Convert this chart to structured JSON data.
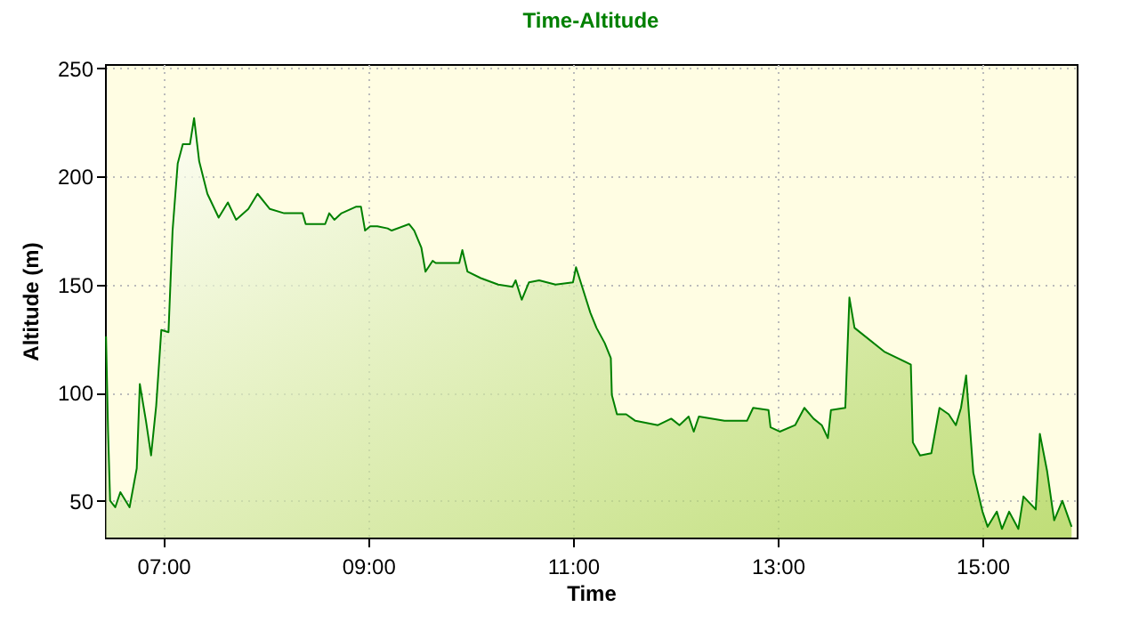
{
  "chart_data": {
    "type": "area",
    "title": "Time-Altitude",
    "xlabel": "Time",
    "ylabel": "Altitude (m)",
    "x": [
      6.44,
      6.46,
      6.48,
      6.53,
      6.58,
      6.67,
      6.74,
      6.77,
      6.83,
      6.88,
      6.93,
      6.98,
      7.05,
      7.09,
      7.14,
      7.19,
      7.26,
      7.3,
      7.35,
      7.43,
      7.54,
      7.63,
      7.71,
      7.83,
      7.92,
      8.04,
      8.18,
      8.36,
      8.39,
      8.58,
      8.62,
      8.67,
      8.74,
      8.88,
      8.93,
      8.97,
      9.02,
      9.09,
      9.19,
      9.23,
      9.4,
      9.45,
      9.52,
      9.56,
      9.63,
      9.66,
      9.89,
      9.92,
      9.97,
      10.1,
      10.27,
      10.41,
      10.44,
      10.5,
      10.57,
      10.67,
      10.83,
      11.0,
      11.03,
      11.09,
      11.17,
      11.23,
      11.31,
      11.37,
      11.38,
      11.43,
      11.52,
      11.61,
      11.83,
      11.96,
      12.04,
      12.13,
      12.18,
      12.23,
      12.48,
      12.7,
      12.76,
      12.91,
      12.93,
      13.02,
      13.17,
      13.26,
      13.35,
      13.43,
      13.49,
      13.52,
      13.66,
      13.7,
      13.75,
      14.04,
      14.3,
      14.32,
      14.39,
      14.5,
      14.58,
      14.67,
      14.74,
      14.79,
      14.84,
      14.91,
      15.0,
      15.05,
      15.14,
      15.19,
      15.26,
      15.35,
      15.4,
      15.52,
      15.56,
      15.63,
      15.7,
      15.78,
      15.87
    ],
    "series": [
      {
        "color": "#008000",
        "values": [
          126,
          82,
          50,
          47,
          54,
          47,
          65,
          104,
          87,
          71,
          94,
          129,
          128,
          175,
          206,
          215,
          215,
          227,
          207,
          192,
          181,
          188,
          180,
          185,
          192,
          185,
          183,
          183,
          178,
          178,
          183,
          180,
          183,
          186,
          186,
          175,
          177,
          177,
          176,
          175,
          178,
          175,
          167,
          156,
          161,
          160,
          160,
          166,
          156,
          153,
          150,
          149,
          152,
          143,
          151,
          152,
          150,
          151,
          158,
          149,
          137,
          130,
          123,
          116,
          99,
          90,
          90,
          87,
          85,
          88,
          85,
          89,
          82,
          89,
          87,
          87,
          93,
          92,
          84,
          82,
          85,
          93,
          88,
          85,
          79,
          92,
          93,
          144,
          130,
          119,
          113,
          77,
          71,
          72,
          93,
          90,
          85,
          93,
          108,
          63,
          45,
          38,
          45,
          37,
          45,
          37,
          52,
          46,
          81,
          64,
          41,
          50,
          38
        ]
      }
    ],
    "xlim": [
      6.43,
      15.92
    ],
    "ylim": [
      33,
      252
    ],
    "xticks": [
      {
        "value": 7,
        "label": "07:00"
      },
      {
        "value": 9,
        "label": "09:00"
      },
      {
        "value": 11,
        "label": "11:00"
      },
      {
        "value": 13,
        "label": "13:00"
      },
      {
        "value": 15,
        "label": "15:00"
      }
    ],
    "yticks": [
      50,
      100,
      150,
      200,
      250
    ],
    "grid": true
  }
}
